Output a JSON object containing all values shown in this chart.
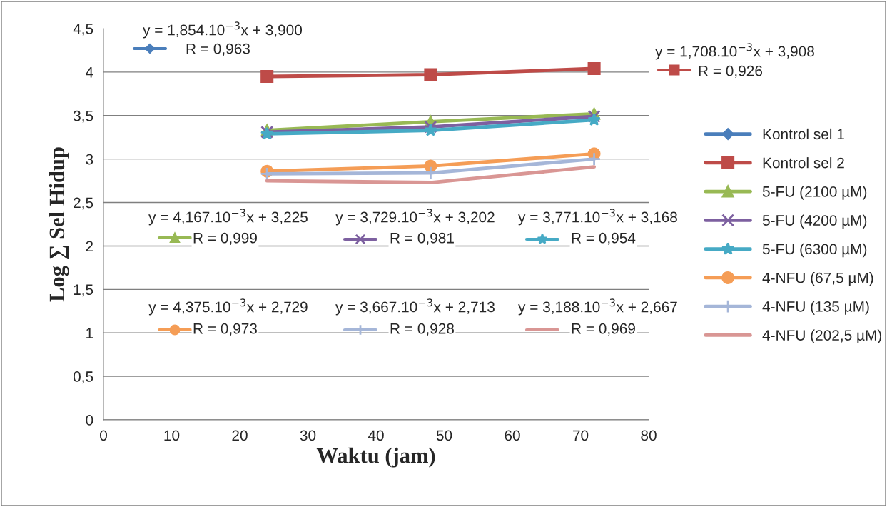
{
  "chart_data": {
    "type": "line",
    "xlabel": "Waktu (jam)",
    "ylabel": "Log ∑ Sel Hidup",
    "x": [
      24,
      48,
      72
    ],
    "series": [
      {
        "name": "Kontrol sel 1",
        "color": "#4a7ebb",
        "marker": "diamond",
        "values": [
          null,
          null,
          null
        ]
      },
      {
        "name": "Kontrol sel 2",
        "color": "#be4b48",
        "marker": "square",
        "values": [
          3.95,
          3.97,
          4.04
        ]
      },
      {
        "name": "5-FU (2100 µM)",
        "color": "#98b954",
        "marker": "triangle",
        "values": [
          3.33,
          3.43,
          3.52
        ]
      },
      {
        "name": "5-FU (4200 µM)",
        "color": "#7d60a0",
        "marker": "cross",
        "values": [
          3.31,
          3.37,
          3.49
        ]
      },
      {
        "name": "5-FU (6300 µM)",
        "color": "#46aac5",
        "marker": "star",
        "values": [
          3.29,
          3.33,
          3.45
        ]
      },
      {
        "name": "4-NFU (67,5 µM)",
        "color": "#f59d56",
        "marker": "circle",
        "values": [
          2.86,
          2.92,
          3.06
        ]
      },
      {
        "name": "4-NFU (135 µM)",
        "color": "#a5b6d8",
        "marker": "plus",
        "values": [
          2.83,
          2.84,
          3.0
        ]
      },
      {
        "name": "4-NFU (202,5 µM)",
        "color": "#d99694",
        "marker": "none",
        "values": [
          2.75,
          2.73,
          2.91
        ]
      }
    ],
    "xlim": [
      0,
      80
    ],
    "xticks": [
      0,
      10,
      20,
      30,
      40,
      50,
      60,
      70,
      80
    ],
    "ylim": [
      0,
      4.5
    ],
    "yticks": [
      0,
      {
        "value": 0.5,
        "label": "0,5"
      },
      1,
      {
        "value": 1.5,
        "label": "1,5"
      },
      2,
      {
        "value": 2.5,
        "label": "2,5"
      },
      3,
      {
        "value": 3.5,
        "label": "3,5"
      },
      4,
      {
        "value": 4.5,
        "label": "4,5"
      }
    ],
    "grid": "y",
    "legend": "right",
    "annotations": [
      "y = 1,854.10$^{−3}$x + 3,900",
      "R = 0,963",
      "y = 1,708.10$^{−3}$x + 3,908",
      "R = 0,926",
      "y = 4,167.10$^{−3}$x + 3,225",
      "R = 0,999",
      "y = 3,729.10$^{−3}$x + 3,202",
      "R = 0,981",
      "y = 3,771.10$^{−3}$x + 3,168",
      "R = 0,954",
      "y = 4,375.10$^{−3}$x + 2,729",
      "R = 0,973",
      "y = 3,667.10$^{−3}$x + 2,713",
      "R = 0,928",
      "y = 3,188.10$^{−3}$x + 2,667",
      "R = 0,969"
    ]
  }
}
